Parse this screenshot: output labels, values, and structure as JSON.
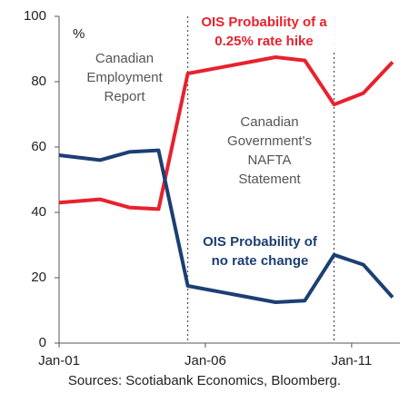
{
  "chart_data": {
    "type": "line",
    "unit_label": "%",
    "x": [
      1,
      2.4,
      3.4,
      4.4,
      5.4,
      8.4,
      9.4,
      10.4,
      11.4,
      12.4
    ],
    "xlim": [
      1,
      12.65
    ],
    "xticks": [
      {
        "value": 1,
        "label": "Jan-01"
      },
      {
        "value": 6,
        "label": "Jan-06"
      },
      {
        "value": 11,
        "label": "Jan-11"
      }
    ],
    "ylim": [
      0,
      100
    ],
    "yticks": [
      0,
      20,
      40,
      60,
      80,
      100
    ],
    "grid": false,
    "series": [
      {
        "name": "OIS Probability of a 0.25% rate hike",
        "color": "#e8212e",
        "values": [
          43,
          44,
          41.5,
          41,
          82.5,
          87.5,
          86.5,
          73,
          76.5,
          86
        ]
      },
      {
        "name": "OIS Probability of no rate change",
        "color": "#1c3f73",
        "values": [
          57.5,
          56,
          58.5,
          59,
          17.5,
          12.5,
          13,
          27,
          24,
          14
        ]
      }
    ],
    "events": [
      {
        "x": 5.4,
        "label": "Canadian Employment Report"
      },
      {
        "x": 10.4,
        "label": "Canadian Government's NAFTA Statement"
      }
    ],
    "source": "Sources: Scotiabank Economics, Bloomberg."
  }
}
